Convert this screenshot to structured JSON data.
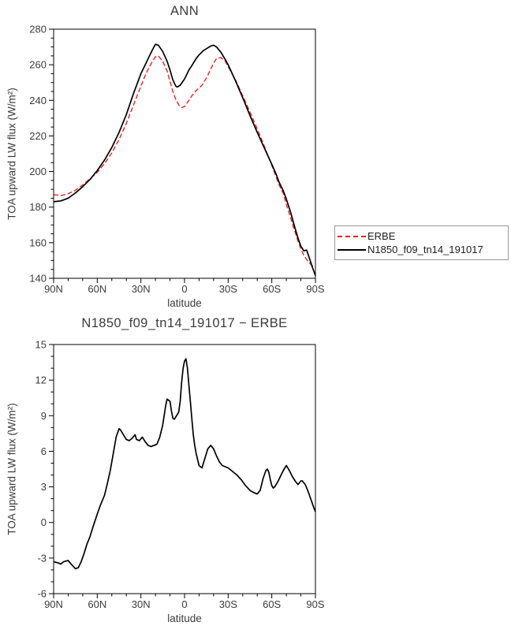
{
  "colors": {
    "axis": "#000000",
    "text": "#3c3c3c",
    "erbe_red": "#e62222",
    "model_black": "#000000"
  },
  "chart_data": [
    {
      "type": "line",
      "title": "ANN",
      "xlabel": "latitude",
      "ylabel": "TOA upward LW flux (W/m²)",
      "xlim": [
        90,
        -90
      ],
      "ylim": [
        140,
        280
      ],
      "yticks": [
        140,
        160,
        180,
        200,
        220,
        240,
        260,
        280
      ],
      "ytick_minor_step": 5,
      "xticks": [
        {
          "lat": 90,
          "label": "90N"
        },
        {
          "lat": 60,
          "label": "60N"
        },
        {
          "lat": 30,
          "label": "30N"
        },
        {
          "lat": 0,
          "label": "0"
        },
        {
          "lat": -30,
          "label": "30S"
        },
        {
          "lat": -60,
          "label": "60S"
        },
        {
          "lat": -90,
          "label": "90S"
        }
      ],
      "xtick_minor_step": 10,
      "grid": false,
      "legend": {
        "position": "outside-right-bottom",
        "entries": [
          "ERBE",
          "N1850_f09_tn14_191017"
        ]
      },
      "series": [
        {
          "name": "ERBE",
          "color": "#e62222",
          "style": "dashed",
          "dash": "6 3",
          "width": 1.4,
          "points": [
            [
              90,
              187
            ],
            [
              85,
              186.5
            ],
            [
              80,
              187.5
            ],
            [
              75,
              189.5
            ],
            [
              70,
              192.5
            ],
            [
              65,
              196
            ],
            [
              60,
              199.5
            ],
            [
              55,
              204.5
            ],
            [
              50,
              210.5
            ],
            [
              45,
              218
            ],
            [
              40,
              227
            ],
            [
              35,
              237.5
            ],
            [
              30,
              248
            ],
            [
              27,
              254
            ],
            [
              25,
              257.5
            ],
            [
              22,
              262
            ],
            [
              20,
              264.5
            ],
            [
              18,
              265
            ],
            [
              15,
              262
            ],
            [
              12,
              256.5
            ],
            [
              10,
              250.5
            ],
            [
              8,
              245
            ],
            [
              6,
              240.5
            ],
            [
              4,
              237.5
            ],
            [
              2,
              236
            ],
            [
              0,
              236.5
            ],
            [
              -3,
              240
            ],
            [
              -5,
              242.5
            ],
            [
              -8,
              245.5
            ],
            [
              -10,
              247
            ],
            [
              -12,
              248.5
            ],
            [
              -15,
              252.5
            ],
            [
              -18,
              257.5
            ],
            [
              -20,
              261
            ],
            [
              -22,
              263.5
            ],
            [
              -25,
              264
            ],
            [
              -28,
              262
            ],
            [
              -30,
              259
            ],
            [
              -35,
              251.5
            ],
            [
              -40,
              242.5
            ],
            [
              -45,
              233.5
            ],
            [
              -50,
              224
            ],
            [
              -55,
              214
            ],
            [
              -60,
              203.5
            ],
            [
              -65,
              192.5
            ],
            [
              -68,
              187.5
            ],
            [
              -70,
              181.5
            ],
            [
              -73,
              174
            ],
            [
              -75,
              168.5
            ],
            [
              -78,
              161
            ],
            [
              -80,
              156.5
            ],
            [
              -82,
              153
            ],
            [
              -84,
              150.5
            ],
            [
              -86,
              148.5
            ],
            [
              -88,
              147
            ],
            [
              -90,
              146.5
            ]
          ]
        },
        {
          "name": "N1850_f09_tn14_191017",
          "color": "#000000",
          "style": "solid",
          "dash": "",
          "width": 1.7,
          "points": [
            [
              90,
              183
            ],
            [
              85,
              183.5
            ],
            [
              80,
              185
            ],
            [
              75,
              188
            ],
            [
              70,
              191.5
            ],
            [
              65,
              195.5
            ],
            [
              60,
              200.5
            ],
            [
              55,
              206.5
            ],
            [
              50,
              213.5
            ],
            [
              45,
              222
            ],
            [
              40,
              232
            ],
            [
              35,
              244
            ],
            [
              30,
              255
            ],
            [
              27,
              260
            ],
            [
              25,
              263.5
            ],
            [
              22,
              268.5
            ],
            [
              20,
              271.5
            ],
            [
              18,
              271
            ],
            [
              15,
              267.5
            ],
            [
              12,
              262
            ],
            [
              10,
              257
            ],
            [
              8,
              251.5
            ],
            [
              6,
              248
            ],
            [
              5,
              247.5
            ],
            [
              3,
              248.5
            ],
            [
              0,
              252
            ],
            [
              -3,
              257
            ],
            [
              -5,
              259.5
            ],
            [
              -8,
              263.5
            ],
            [
              -10,
              265.5
            ],
            [
              -13,
              268
            ],
            [
              -15,
              269
            ],
            [
              -18,
              270.5
            ],
            [
              -20,
              271
            ],
            [
              -22,
              270
            ],
            [
              -25,
              267
            ],
            [
              -28,
              263
            ],
            [
              -30,
              260
            ],
            [
              -35,
              251
            ],
            [
              -40,
              241.5
            ],
            [
              -45,
              231.5
            ],
            [
              -50,
              222
            ],
            [
              -55,
              213
            ],
            [
              -60,
              204
            ],
            [
              -63,
              198.5
            ],
            [
              -65,
              194
            ],
            [
              -68,
              189
            ],
            [
              -70,
              184.5
            ],
            [
              -73,
              177
            ],
            [
              -75,
              171
            ],
            [
              -78,
              162.5
            ],
            [
              -80,
              158
            ],
            [
              -82,
              155.5
            ],
            [
              -84,
              155.8
            ],
            [
              -86,
              151
            ],
            [
              -88,
              146
            ],
            [
              -90,
              141.5
            ]
          ]
        }
      ]
    },
    {
      "type": "line",
      "title": "N1850_f09_tn14_191017 − ERBE",
      "xlabel": "latitude",
      "ylabel": "TOA upward LW flux (W/m²)",
      "xlim": [
        90,
        -90
      ],
      "ylim": [
        -6,
        15
      ],
      "yticks": [
        -6,
        -3,
        0,
        3,
        6,
        9,
        12,
        15
      ],
      "ytick_minor_step": 1,
      "xticks": [
        {
          "lat": 90,
          "label": "90N"
        },
        {
          "lat": 60,
          "label": "60N"
        },
        {
          "lat": 30,
          "label": "30N"
        },
        {
          "lat": 0,
          "label": "0"
        },
        {
          "lat": -30,
          "label": "30S"
        },
        {
          "lat": -60,
          "label": "60S"
        },
        {
          "lat": -90,
          "label": "90S"
        }
      ],
      "xtick_minor_step": 10,
      "grid": false,
      "series": [
        {
          "name": "N1850_f09_tn14_191017 − ERBE",
          "color": "#000000",
          "style": "solid",
          "dash": "",
          "width": 1.7,
          "points": [
            [
              90,
              -3.3
            ],
            [
              87,
              -3.4
            ],
            [
              85,
              -3.5
            ],
            [
              83,
              -3.3
            ],
            [
              80,
              -3.2
            ],
            [
              78,
              -3.5
            ],
            [
              75,
              -3.9
            ],
            [
              73,
              -3.8
            ],
            [
              71,
              -3.3
            ],
            [
              69,
              -2.6
            ],
            [
              67,
              -1.8
            ],
            [
              65,
              -1.2
            ],
            [
              63,
              -0.4
            ],
            [
              60,
              0.7
            ],
            [
              58,
              1.4
            ],
            [
              55,
              2.3
            ],
            [
              53,
              3.3
            ],
            [
              51,
              4.4
            ],
            [
              49,
              5.8
            ],
            [
              47,
              7.2
            ],
            [
              45,
              7.9
            ],
            [
              44,
              7.8
            ],
            [
              42,
              7.4
            ],
            [
              40,
              7
            ],
            [
              38,
              6.9
            ],
            [
              36,
              7.1
            ],
            [
              34,
              7.4
            ],
            [
              33,
              7
            ],
            [
              31,
              6.9
            ],
            [
              29,
              7.2
            ],
            [
              27,
              6.8
            ],
            [
              25,
              6.5
            ],
            [
              23,
              6.4
            ],
            [
              21,
              6.5
            ],
            [
              19,
              6.6
            ],
            [
              17,
              7.2
            ],
            [
              15,
              8.2
            ],
            [
              13,
              9.8
            ],
            [
              12,
              10.4
            ],
            [
              10,
              10.2
            ],
            [
              9,
              9.4
            ],
            [
              8,
              8.8
            ],
            [
              7,
              8.7
            ],
            [
              6,
              8.9
            ],
            [
              5,
              9.1
            ],
            [
              4,
              9.3
            ],
            [
              3,
              10.2
            ],
            [
              2,
              11.8
            ],
            [
              1,
              13
            ],
            [
              0,
              13.6
            ],
            [
              -1,
              13.8
            ],
            [
              -2,
              13
            ],
            [
              -3,
              11.6
            ],
            [
              -4,
              10.2
            ],
            [
              -5,
              8.8
            ],
            [
              -6,
              7.4
            ],
            [
              -7,
              6.5
            ],
            [
              -8,
              5.8
            ],
            [
              -10,
              4.8
            ],
            [
              -12,
              4.6
            ],
            [
              -14,
              5.4
            ],
            [
              -16,
              6.2
            ],
            [
              -18,
              6.5
            ],
            [
              -20,
              6.2
            ],
            [
              -22,
              5.6
            ],
            [
              -24,
              5.1
            ],
            [
              -26,
              4.8
            ],
            [
              -28,
              4.7
            ],
            [
              -30,
              4.6
            ],
            [
              -33,
              4.3
            ],
            [
              -36,
              4
            ],
            [
              -39,
              3.6
            ],
            [
              -42,
              3.1
            ],
            [
              -45,
              2.7
            ],
            [
              -48,
              2.5
            ],
            [
              -50,
              2.4
            ],
            [
              -52,
              2.7
            ],
            [
              -54,
              3.7
            ],
            [
              -56,
              4.4
            ],
            [
              -57,
              4.5
            ],
            [
              -58,
              4.2
            ],
            [
              -59,
              3.6
            ],
            [
              -60,
              3.1
            ],
            [
              -61,
              2.9
            ],
            [
              -62,
              3
            ],
            [
              -64,
              3.4
            ],
            [
              -66,
              3.9
            ],
            [
              -68,
              4.4
            ],
            [
              -70,
              4.8
            ],
            [
              -72,
              4.4
            ],
            [
              -74,
              3.9
            ],
            [
              -76,
              3.5
            ],
            [
              -78,
              3.2
            ],
            [
              -80,
              3.5
            ],
            [
              -81,
              3.5
            ],
            [
              -83,
              3.2
            ],
            [
              -85,
              2.6
            ],
            [
              -87,
              1.9
            ],
            [
              -89,
              1.2
            ],
            [
              -90,
              0.9
            ]
          ]
        }
      ]
    }
  ]
}
